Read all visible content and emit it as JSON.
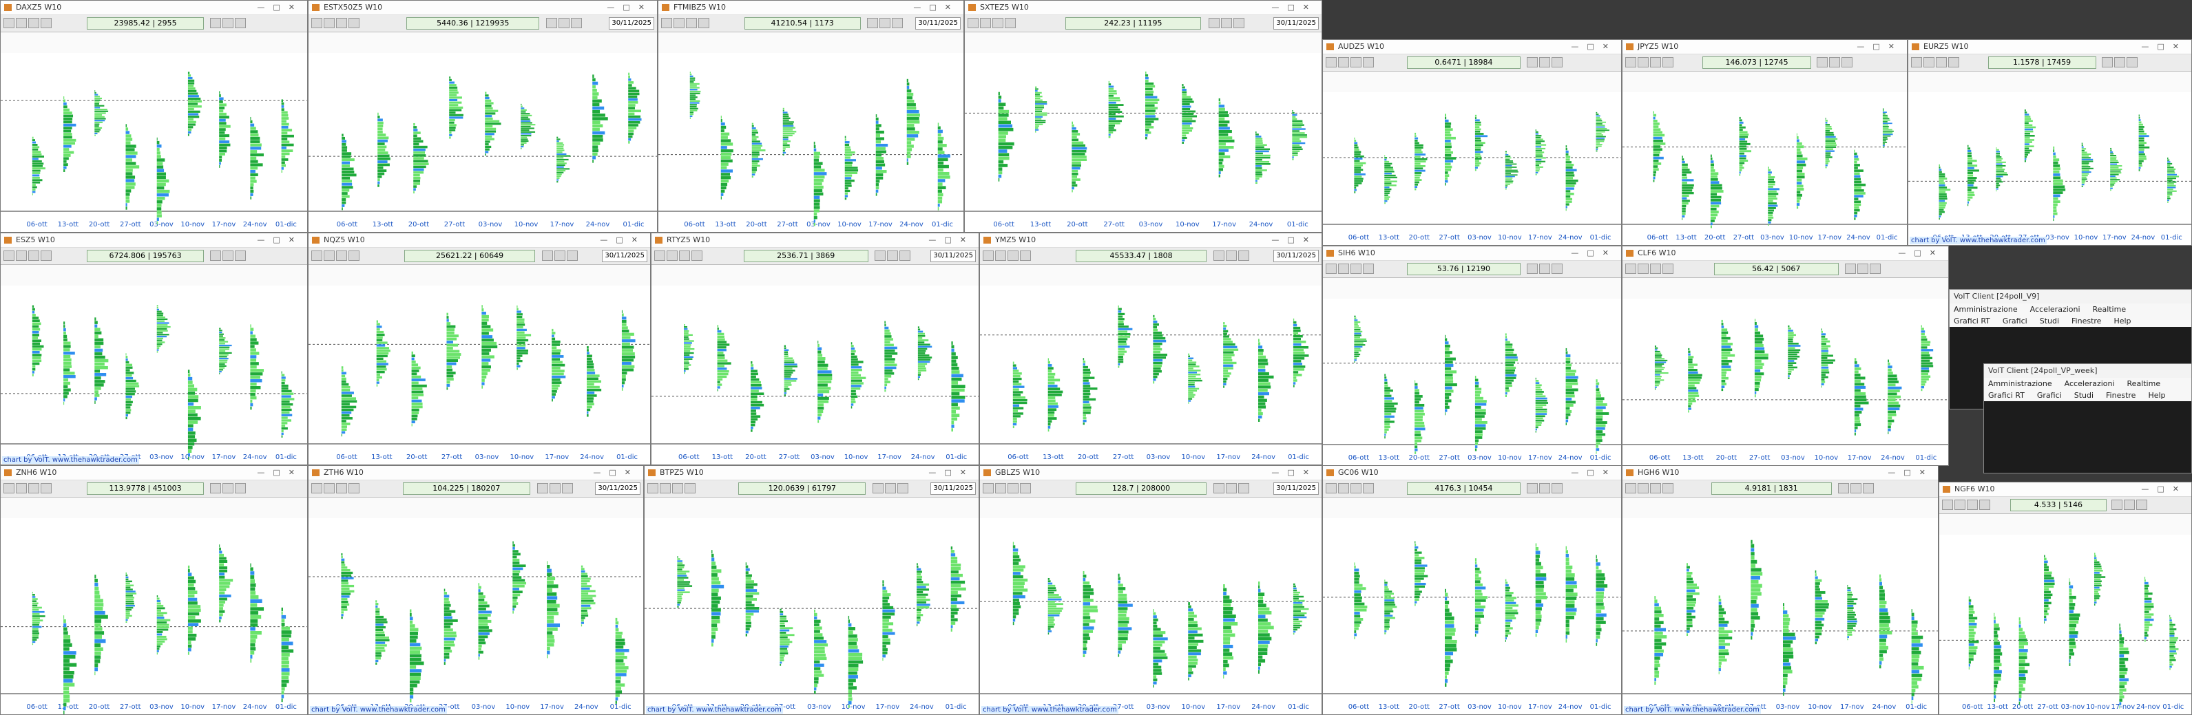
{
  "xaxis": [
    "06-ott",
    "13-ott",
    "20-ott",
    "27-ott",
    "03-nov",
    "10-nov",
    "17-nov",
    "24-nov",
    "01-dic"
  ],
  "footer_text": "chart by VolT. www.thehawktrader.com",
  "windows": [
    {
      "title": "DAXZ5 W10",
      "price": "23985.42 | 2955"
    },
    {
      "title": "ESTX50Z5 W10",
      "price": "5440.36 | 1219935",
      "date": "30/11/2025"
    },
    {
      "title": "FTMIBZ5 W10",
      "price": "41210.54 | 1173",
      "date": "30/11/2025"
    },
    {
      "title": "SXTEZ5 W10",
      "price": "242.23 | 11195",
      "date": "30/11/2025"
    },
    {
      "title": "AUDZ5 W10",
      "price": "0.6471 | 18984"
    },
    {
      "title": "JPYZ5 W10",
      "price": "146.073 | 12745"
    },
    {
      "title": "EURZ5 W10",
      "price": "1.1578 | 17459",
      "footer": true
    },
    {
      "title": "ESZ5 W10",
      "price": "6724.806 | 195763",
      "footer": true
    },
    {
      "title": "NQZ5 W10",
      "price": "25621.22 | 60649",
      "date": "30/11/2025"
    },
    {
      "title": "RTYZ5 W10",
      "price": "2536.71 | 3869",
      "date": "30/11/2025"
    },
    {
      "title": "YMZ5 W10",
      "price": "45533.47 | 1808",
      "date": "30/11/2025"
    },
    {
      "title": "SIH6 W10",
      "price": "53.76 | 12190"
    },
    {
      "title": "CLF6 W10",
      "price": "56.42 | 5067"
    },
    {
      "title": "ZNH6 W10",
      "price": "113.9778 | 451003"
    },
    {
      "title": "ZTH6 W10",
      "price": "104.225 | 180207",
      "date": "30/11/2025",
      "footer": true
    },
    {
      "title": "BTPZ5 W10",
      "price": "120.0639 | 61797",
      "date": "30/11/2025",
      "footer": true
    },
    {
      "title": "GBLZ5 W10",
      "price": "128.7 | 208000",
      "date": "30/11/2025",
      "footer": true
    },
    {
      "title": "GC06 W10",
      "price": "4176.3 | 10454"
    },
    {
      "title": "HGH6 W10",
      "price": "4.9181 | 1831",
      "footer": true
    },
    {
      "title": "NGF6 W10",
      "price": "4.533 | 5146"
    }
  ],
  "clients": [
    {
      "title": "VolT Client [24poll_V9]",
      "menu": [
        "Amministrazione",
        "Accelerazioni",
        "Realtime"
      ],
      "menu2": [
        "Grafici RT",
        "Grafici",
        "Studi",
        "Finestre",
        "Help"
      ]
    },
    {
      "title": "VolT Client [24poll_VP_week]",
      "menu": [
        "Amministrazione",
        "Accelerazioni",
        "Realtime"
      ],
      "menu2": [
        "Grafici RT",
        "Grafici",
        "Studi",
        "Finestre",
        "Help"
      ]
    }
  ]
}
